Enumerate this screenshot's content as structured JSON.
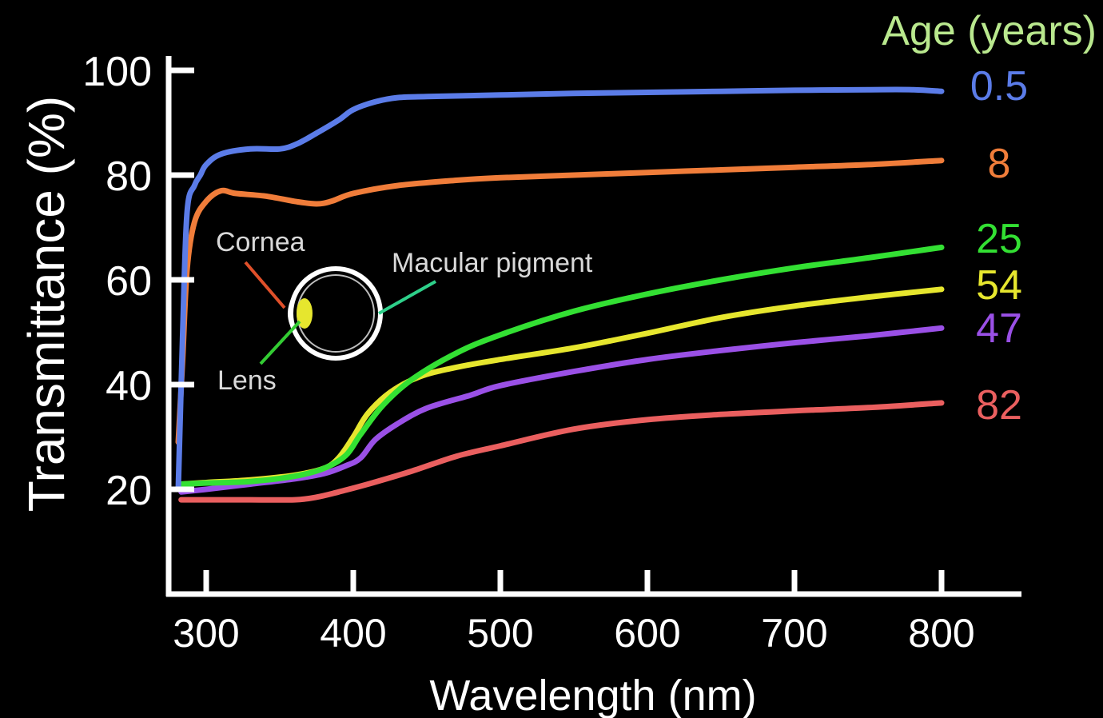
{
  "chart_data": {
    "type": "line",
    "xlabel": "Wavelength (nm)",
    "ylabel": "Transmittance (%)",
    "xlim": [
      280,
      805
    ],
    "ylim": [
      0,
      100
    ],
    "x_ticks": [
      300,
      400,
      500,
      600,
      700,
      800
    ],
    "y_ticks": [
      20,
      40,
      60,
      80,
      100
    ],
    "legend_title": "Age (years)",
    "legend_placement": "right",
    "grid": false,
    "series": [
      {
        "name": "0.5",
        "color": "#5b7ce8",
        "points": [
          [
            281,
            20
          ],
          [
            284,
            50
          ],
          [
            287,
            73
          ],
          [
            292,
            78
          ],
          [
            296,
            80
          ],
          [
            300,
            82
          ],
          [
            310,
            84
          ],
          [
            330,
            85
          ],
          [
            350,
            85
          ],
          [
            362,
            86
          ],
          [
            375,
            88
          ],
          [
            390,
            90.5
          ],
          [
            400,
            92.5
          ],
          [
            415,
            94
          ],
          [
            430,
            94.8
          ],
          [
            450,
            95
          ],
          [
            500,
            95.3
          ],
          [
            550,
            95.6
          ],
          [
            600,
            95.8
          ],
          [
            650,
            96
          ],
          [
            700,
            96.2
          ],
          [
            750,
            96.3
          ],
          [
            780,
            96.3
          ],
          [
            800,
            96
          ]
        ]
      },
      {
        "name": "8",
        "color": "#f07d3a",
        "points": [
          [
            281,
            29
          ],
          [
            284,
            45
          ],
          [
            287,
            62
          ],
          [
            292,
            71
          ],
          [
            300,
            75
          ],
          [
            310,
            77
          ],
          [
            320,
            76.5
          ],
          [
            340,
            76
          ],
          [
            360,
            75
          ],
          [
            375,
            74.5
          ],
          [
            385,
            75
          ],
          [
            400,
            76.5
          ],
          [
            430,
            78
          ],
          [
            470,
            79
          ],
          [
            500,
            79.5
          ],
          [
            550,
            80
          ],
          [
            600,
            80.5
          ],
          [
            650,
            81
          ],
          [
            700,
            81.5
          ],
          [
            750,
            82
          ],
          [
            800,
            82.8
          ]
        ]
      },
      {
        "name": "25",
        "color": "#33e033",
        "points": [
          [
            283,
            21
          ],
          [
            300,
            21.2
          ],
          [
            330,
            21.5
          ],
          [
            360,
            22.5
          ],
          [
            380,
            24
          ],
          [
            395,
            26.5
          ],
          [
            405,
            30.5
          ],
          [
            420,
            36
          ],
          [
            440,
            41
          ],
          [
            470,
            46
          ],
          [
            500,
            49.5
          ],
          [
            550,
            54
          ],
          [
            600,
            57.3
          ],
          [
            650,
            60
          ],
          [
            700,
            62.3
          ],
          [
            750,
            64.2
          ],
          [
            800,
            66.2
          ]
        ]
      },
      {
        "name": "54",
        "color": "#e6e62e",
        "points": [
          [
            283,
            21
          ],
          [
            300,
            21.3
          ],
          [
            330,
            21.8
          ],
          [
            360,
            22.7
          ],
          [
            380,
            24
          ],
          [
            390,
            26
          ],
          [
            400,
            30
          ],
          [
            410,
            34.5
          ],
          [
            425,
            38.5
          ],
          [
            445,
            41.5
          ],
          [
            470,
            43.3
          ],
          [
            500,
            44.8
          ],
          [
            550,
            47
          ],
          [
            600,
            49.8
          ],
          [
            650,
            52.8
          ],
          [
            700,
            55
          ],
          [
            750,
            56.7
          ],
          [
            800,
            58.2
          ]
        ]
      },
      {
        "name": "47",
        "color": "#9a50e6",
        "points": [
          [
            283,
            19.5
          ],
          [
            300,
            20
          ],
          [
            330,
            21
          ],
          [
            360,
            22
          ],
          [
            380,
            23
          ],
          [
            395,
            24.5
          ],
          [
            405,
            26
          ],
          [
            415,
            29.5
          ],
          [
            430,
            32.5
          ],
          [
            450,
            35.5
          ],
          [
            480,
            38
          ],
          [
            500,
            39.8
          ],
          [
            550,
            42.5
          ],
          [
            600,
            44.8
          ],
          [
            650,
            46.5
          ],
          [
            700,
            48
          ],
          [
            750,
            49.3
          ],
          [
            800,
            50.8
          ]
        ]
      },
      {
        "name": "82",
        "color": "#ea5f5f",
        "points": [
          [
            283,
            18
          ],
          [
            300,
            18
          ],
          [
            330,
            18
          ],
          [
            360,
            18
          ],
          [
            375,
            18.5
          ],
          [
            390,
            19.5
          ],
          [
            410,
            21
          ],
          [
            440,
            23.5
          ],
          [
            470,
            26.3
          ],
          [
            500,
            28.3
          ],
          [
            550,
            31.5
          ],
          [
            600,
            33.3
          ],
          [
            650,
            34.3
          ],
          [
            700,
            35
          ],
          [
            750,
            35.6
          ],
          [
            800,
            36.5
          ]
        ]
      }
    ]
  },
  "annotations": {
    "cornea": "Cornea",
    "lens": "Lens",
    "macular": "Macular pigment"
  }
}
